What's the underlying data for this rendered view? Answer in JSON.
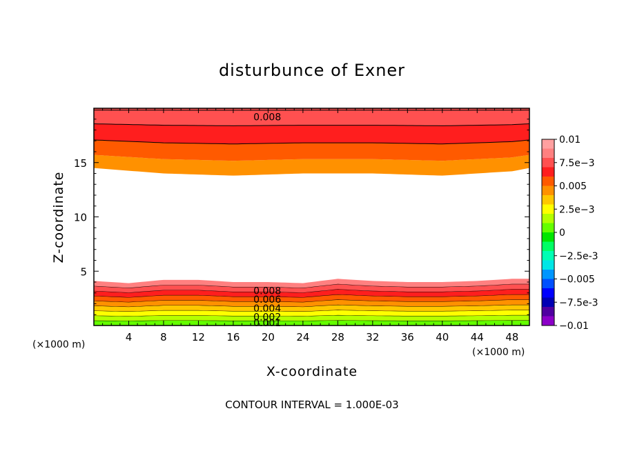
{
  "chart_data": {
    "type": "heatmap",
    "title": "disturbunce of Exner",
    "xlabel": "X-coordinate",
    "ylabel": "Z-coordinate",
    "x_unit_label": "(×1000 m)",
    "xlim": [
      0,
      50
    ],
    "ylim": [
      0,
      20
    ],
    "x_ticks": [
      4,
      8,
      12,
      16,
      20,
      24,
      28,
      32,
      36,
      40,
      44,
      48
    ],
    "y_ticks": [
      5,
      10,
      15
    ],
    "footnote": "CONTOUR INTERVAL = 1.000E-03",
    "contour_interval": 0.001,
    "colorbar": {
      "range": [
        -0.01,
        0.01
      ],
      "tick_labels": [
        "0.01",
        "7.5e-3",
        "0.005",
        "2.5e-3",
        "0",
        "-2.5e-3",
        "-0.005",
        "-7.5e-3",
        "-0.01"
      ],
      "colors": [
        "#ffa0a0",
        "#ff8080",
        "#ff5050",
        "#ff1e1e",
        "#ff5a00",
        "#ff9100",
        "#ffc800",
        "#ffff00",
        "#b4ff00",
        "#64ff00",
        "#00e600",
        "#00ff64",
        "#00ffb4",
        "#00e6e6",
        "#0096ff",
        "#0050ff",
        "#0000ff",
        "#0000b4",
        "#5000a0",
        "#8c00c8"
      ]
    },
    "contour_labels": [
      {
        "text": "0.008",
        "x": 18,
        "z": 19.2
      },
      {
        "text": "0.008",
        "x": 18,
        "z": 3.2
      },
      {
        "text": "0.006",
        "x": 18,
        "z": 2.4
      },
      {
        "text": "0.004",
        "x": 18,
        "z": 1.6
      },
      {
        "text": "0.002",
        "x": 18,
        "z": 0.8
      },
      {
        "text": "0.001",
        "x": 18,
        "z": 0.25
      }
    ],
    "upper_region": {
      "bands_top_to_bottom": [
        0.008,
        0.007,
        0.006,
        0.005
      ],
      "base_z_profile": {
        "x": [
          0,
          8,
          16,
          24,
          32,
          40,
          48,
          50
        ],
        "z": [
          14.5,
          14.0,
          13.8,
          14.0,
          14.0,
          13.8,
          14.2,
          14.5
        ]
      }
    },
    "lower_region": {
      "values_bottom_to_top": [
        0.001,
        0.002,
        0.003,
        0.004,
        0.005,
        0.006,
        0.007,
        0.008,
        0.009
      ],
      "top_z_profile": {
        "x": [
          0,
          4,
          8,
          12,
          16,
          20,
          24,
          28,
          32,
          36,
          40,
          44,
          48,
          50
        ],
        "z": [
          4.1,
          3.9,
          4.2,
          4.2,
          4.0,
          4.0,
          3.9,
          4.3,
          4.1,
          4.0,
          4.0,
          4.1,
          4.3,
          4.3
        ]
      }
    }
  }
}
